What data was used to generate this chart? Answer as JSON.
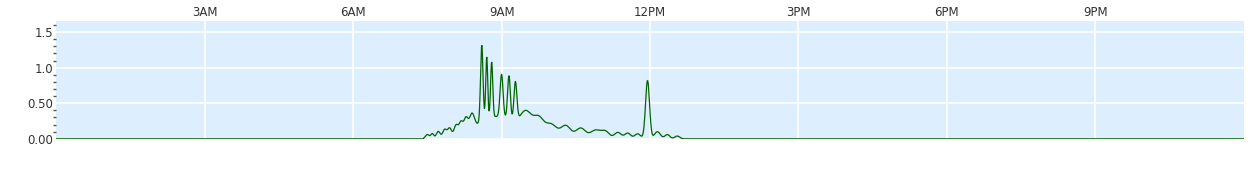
{
  "title": "",
  "x_tick_labels": [
    "3AM",
    "6AM",
    "9AM",
    "12PM",
    "3PM",
    "6PM",
    "9PM"
  ],
  "x_tick_positions": [
    3,
    6,
    9,
    12,
    15,
    18,
    21
  ],
  "y_ticks": [
    0.0,
    0.5,
    1.0,
    1.5
  ],
  "y_tick_labels": [
    "0.00",
    "0.50",
    "1.0",
    "1.5"
  ],
  "ylim": [
    0.0,
    1.65
  ],
  "xlim_hours": [
    0,
    24
  ],
  "line_color": "#006400",
  "bg_color": "#ddeeff",
  "grid_color": "#ffffff",
  "fig_bg": "#ffffff",
  "minor_dot_color": "#555555"
}
